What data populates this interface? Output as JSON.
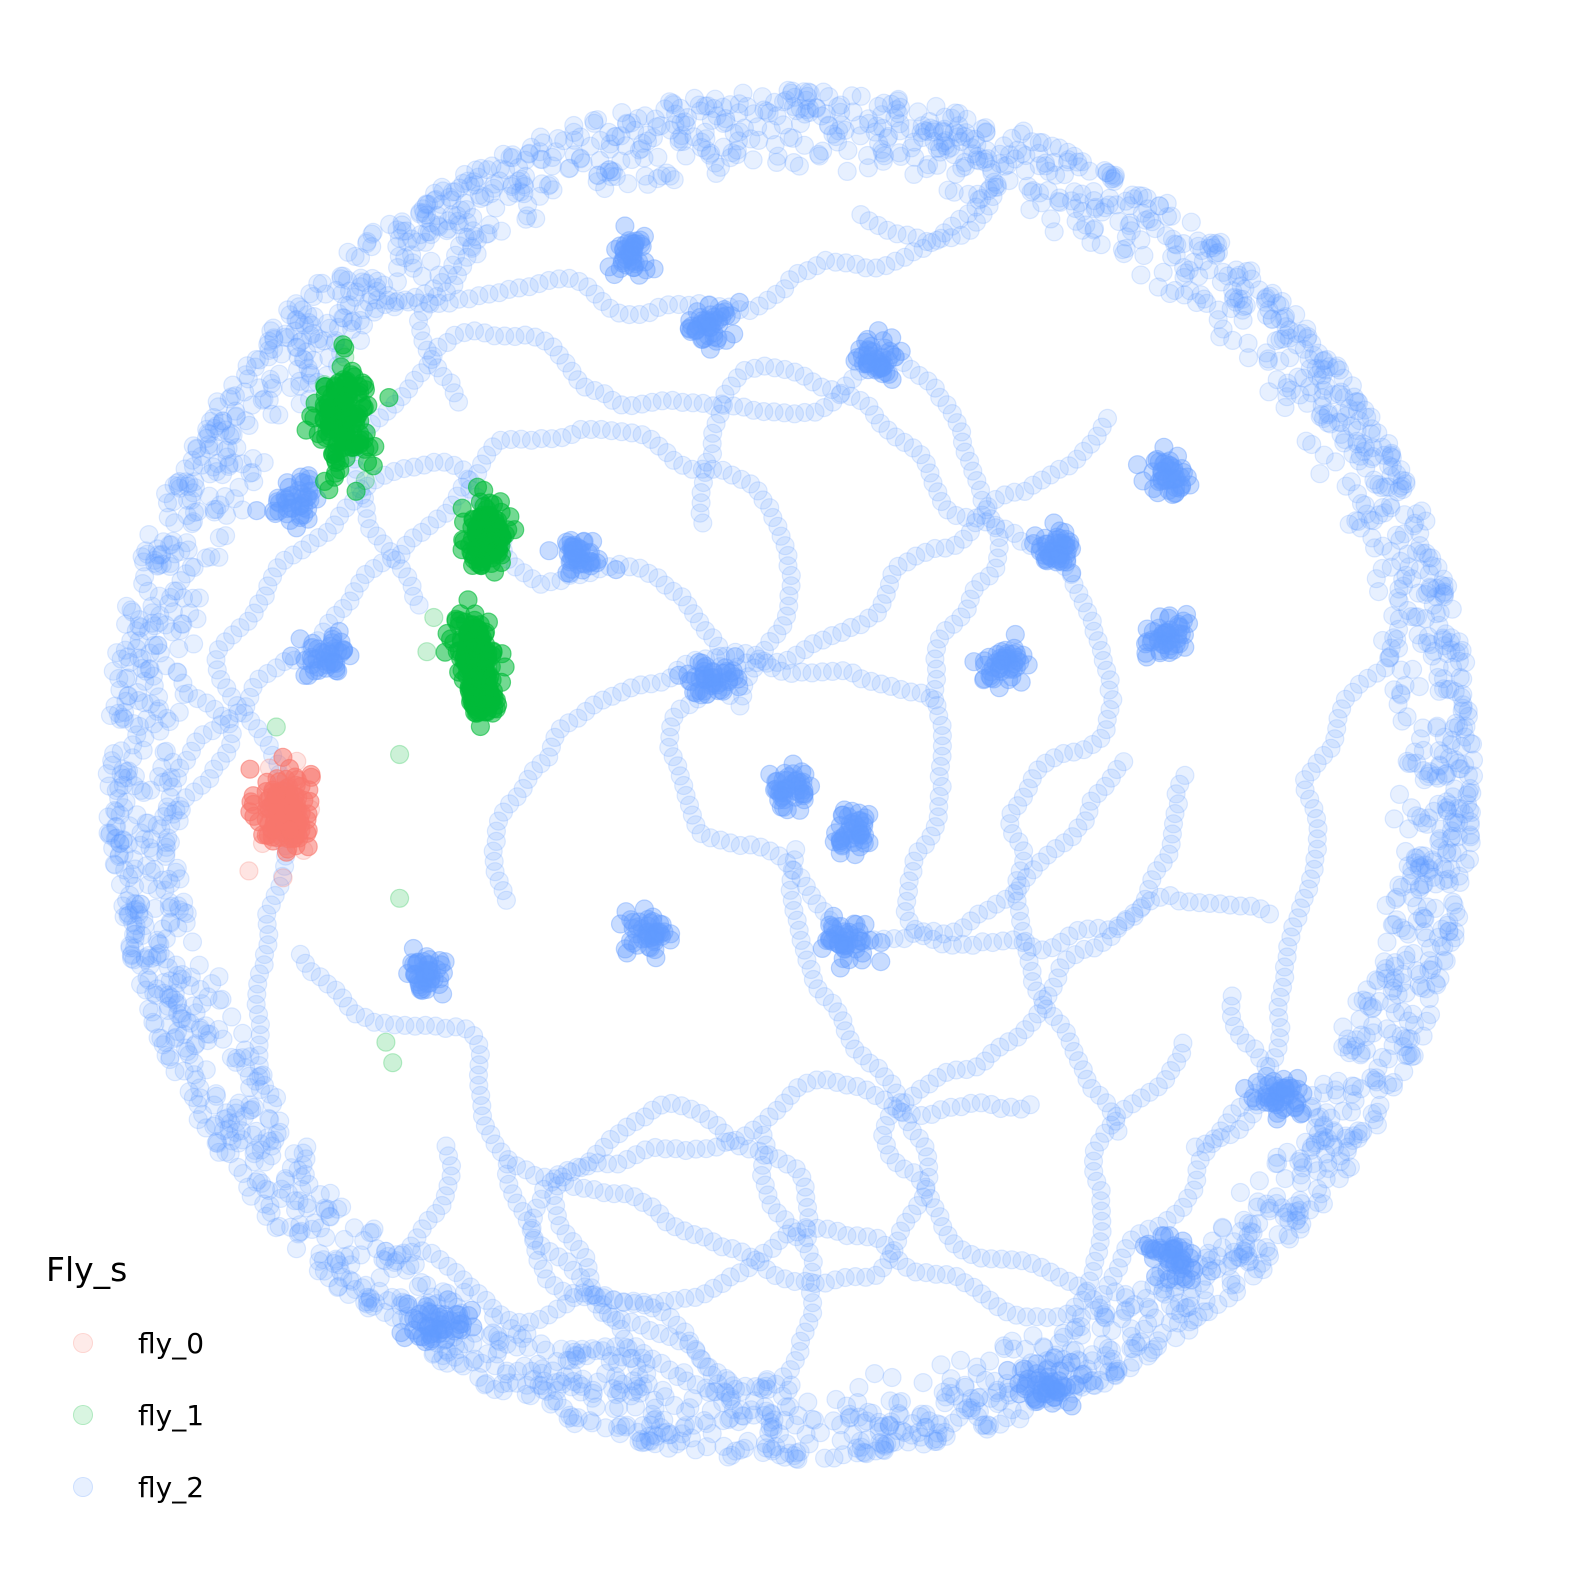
{
  "chart_data": {
    "type": "scatter",
    "legend_title": "Fly_s",
    "legend_placement": "bottom-left",
    "grid": false,
    "axes_visible": false,
    "point_alpha": 0.15,
    "arena": {
      "center": [
        0,
        0
      ],
      "radius": 1.0
    },
    "series": [
      {
        "name": "fly_0",
        "color": "#F8766D",
        "clusters": [
          {
            "center": [
              -0.74,
              -0.05
            ],
            "spread": [
              0.04,
              0.06
            ]
          }
        ],
        "points": [
          [
            -0.76,
            0.01
          ],
          [
            -0.72,
            0.02
          ],
          [
            -0.75,
            -0.03
          ],
          [
            -0.73,
            -0.08
          ],
          [
            -0.7,
            -0.05
          ],
          [
            -0.77,
            -0.1
          ],
          [
            -0.71,
            -0.11
          ],
          [
            -0.79,
            -0.14
          ],
          [
            -0.74,
            -0.15
          ]
        ]
      },
      {
        "name": "fly_1",
        "color": "#00BA38",
        "clusters": [
          {
            "center": [
              -0.65,
              0.52
            ],
            "spread": [
              0.04,
              0.08
            ]
          },
          {
            "center": [
              -0.44,
              0.35
            ],
            "spread": [
              0.03,
              0.05
            ]
          },
          {
            "center": [
              -0.46,
              0.18
            ],
            "spread": [
              0.03,
              0.05
            ]
          },
          {
            "center": [
              -0.45,
              0.12
            ],
            "spread": [
              0.02,
              0.03
            ]
          }
        ],
        "points": [
          [
            -0.62,
            0.43
          ],
          [
            -0.65,
            0.61
          ],
          [
            -0.68,
            0.57
          ],
          [
            -0.52,
            0.23
          ],
          [
            -0.53,
            0.18
          ],
          [
            -0.75,
            0.07
          ],
          [
            -0.57,
            0.03
          ],
          [
            -0.57,
            -0.18
          ],
          [
            -0.59,
            -0.39
          ],
          [
            -0.58,
            -0.42
          ]
        ]
      },
      {
        "name": "fly_2",
        "color": "#619CFF",
        "clusters": [
          {
            "center": [
              -0.12,
              0.66
            ],
            "spread": [
              0.04,
              0.03
            ]
          },
          {
            "center": [
              0.13,
              0.61
            ],
            "spread": [
              0.03,
              0.03
            ]
          },
          {
            "center": [
              -0.31,
              0.32
            ],
            "spread": [
              0.03,
              0.03
            ]
          },
          {
            "center": [
              0.39,
              0.33
            ],
            "spread": [
              0.03,
              0.03
            ]
          },
          {
            "center": [
              0.55,
              0.2
            ],
            "spread": [
              0.03,
              0.03
            ]
          },
          {
            "center": [
              0.31,
              0.16
            ],
            "spread": [
              0.03,
              0.03
            ]
          },
          {
            "center": [
              -0.12,
              0.14
            ],
            "spread": [
              0.04,
              0.03
            ]
          },
          {
            "center": [
              0.0,
              -0.02
            ],
            "spread": [
              0.03,
              0.03
            ]
          },
          {
            "center": [
              0.09,
              -0.08
            ],
            "spread": [
              0.03,
              0.03
            ]
          },
          {
            "center": [
              -0.21,
              -0.23
            ],
            "spread": [
              0.03,
              0.03
            ]
          },
          {
            "center": [
              0.09,
              -0.24
            ],
            "spread": [
              0.04,
              0.03
            ]
          },
          {
            "center": [
              -0.72,
              0.4
            ],
            "spread": [
              0.04,
              0.03
            ]
          },
          {
            "center": [
              -0.68,
              0.17
            ],
            "spread": [
              0.04,
              0.03
            ]
          },
          {
            "center": [
              -0.53,
              -0.29
            ],
            "spread": [
              0.03,
              0.03
            ]
          },
          {
            "center": [
              0.72,
              -0.47
            ],
            "spread": [
              0.04,
              0.03
            ]
          },
          {
            "center": [
              0.56,
              -0.7
            ],
            "spread": [
              0.04,
              0.03
            ]
          },
          {
            "center": [
              0.38,
              -0.89
            ],
            "spread": [
              0.05,
              0.03
            ]
          },
          {
            "center": [
              -0.52,
              -0.8
            ],
            "spread": [
              0.05,
              0.03
            ]
          },
          {
            "center": [
              0.55,
              0.44
            ],
            "spread": [
              0.03,
              0.03
            ]
          },
          {
            "center": [
              -0.23,
              0.76
            ],
            "spread": [
              0.03,
              0.03
            ]
          }
        ],
        "trail_points": 1500,
        "ring_points": 2600,
        "ring_radius_range": [
          0.88,
          1.0
        ]
      }
    ]
  }
}
